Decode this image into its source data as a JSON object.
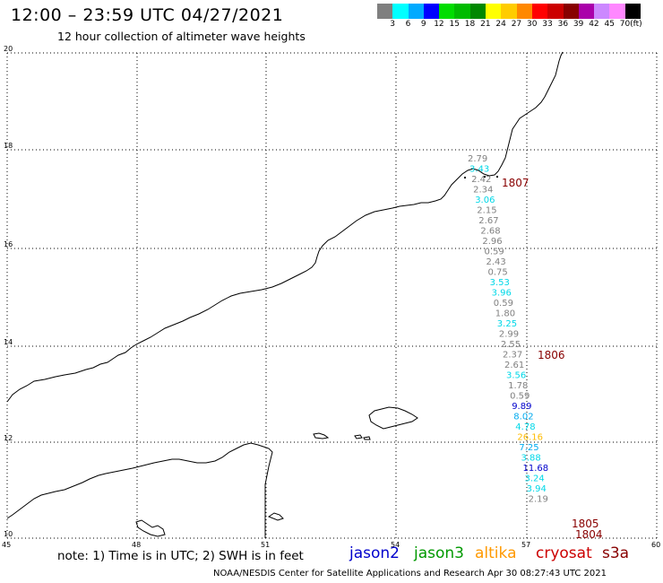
{
  "title": "12:00 – 23:59 UTC 04/27/2021",
  "subtitle": "12 hour collection of altimeter wave heights",
  "colorbar": {
    "colors": [
      "#7f7f7f",
      "#00ffff",
      "#00aaff",
      "#0000ff",
      "#00dd00",
      "#00bb00",
      "#008800",
      "#ffff00",
      "#ffcc00",
      "#ff8800",
      "#ff0000",
      "#cc0000",
      "#880000",
      "#aa00aa",
      "#cc88ff",
      "#ff88ff",
      "#000000"
    ],
    "labels": [
      "3",
      "6",
      "9",
      "12",
      "15",
      "18",
      "21",
      "24",
      "27",
      "30",
      "33",
      "36",
      "39",
      "42",
      "45",
      "70",
      "(ft)"
    ]
  },
  "grid": {
    "lat_labels": [
      "20",
      "18",
      "16",
      "14",
      "12",
      "10"
    ],
    "lon_labels": [
      "45",
      "48",
      "51",
      "54",
      "57",
      "60"
    ]
  },
  "note": "note: 1) Time is in UTC; 2) SWH is in feet",
  "legend": [
    {
      "name": "jason2",
      "color": "#0000cc"
    },
    {
      "name": "jason3",
      "color": "#009900"
    },
    {
      "name": "altika",
      "color": "#ff9900"
    },
    {
      "name": "cryosat",
      "color": "#cc0000"
    },
    {
      "name": "s3a",
      "color": "#880000"
    }
  ],
  "footer": "NOAA/NESDIS Center for Satellite Applications and Research    Apr 30 08:27:43 UTC 2021",
  "track_times": [
    {
      "label": "1807",
      "color": "#880000"
    },
    {
      "label": "1806",
      "color": "#880000"
    },
    {
      "label": "1805",
      "color": "#880000"
    },
    {
      "label": "1804",
      "color": "#880000"
    }
  ],
  "observations": [
    {
      "v": "2.79",
      "c": "#808080"
    },
    {
      "v": "3.43",
      "c": "#00d8e8"
    },
    {
      "v": "2.42",
      "c": "#808080"
    },
    {
      "v": "2.34",
      "c": "#808080"
    },
    {
      "v": "3.06",
      "c": "#00d8e8"
    },
    {
      "v": "2.15",
      "c": "#808080"
    },
    {
      "v": "2.67",
      "c": "#808080"
    },
    {
      "v": "2.68",
      "c": "#808080"
    },
    {
      "v": "2.96",
      "c": "#808080"
    },
    {
      "v": "0.59",
      "c": "#808080"
    },
    {
      "v": "2.43",
      "c": "#808080"
    },
    {
      "v": "0.75",
      "c": "#808080"
    },
    {
      "v": "3.53",
      "c": "#00d8e8"
    },
    {
      "v": "3.96",
      "c": "#00d8e8"
    },
    {
      "v": "0.59",
      "c": "#808080"
    },
    {
      "v": "1.80",
      "c": "#808080"
    },
    {
      "v": "3.25",
      "c": "#00d8e8"
    },
    {
      "v": "2.99",
      "c": "#808080"
    },
    {
      "v": "2.55",
      "c": "#808080"
    },
    {
      "v": "2.37",
      "c": "#808080"
    },
    {
      "v": "2.61",
      "c": "#808080"
    },
    {
      "v": "3.56",
      "c": "#00d8e8"
    },
    {
      "v": "1.78",
      "c": "#808080"
    },
    {
      "v": "0.59",
      "c": "#808080"
    },
    {
      "v": "9.89",
      "c": "#0000cc"
    },
    {
      "v": "8.02",
      "c": "#00aaee"
    },
    {
      "v": "4.78",
      "c": "#00d8e8"
    },
    {
      "v": "26.16",
      "c": "#ffbb00"
    },
    {
      "v": "7.25",
      "c": "#00aaee"
    },
    {
      "v": "3.88",
      "c": "#00d8e8"
    },
    {
      "v": "11.68",
      "c": "#0000cc"
    },
    {
      "v": "3.24",
      "c": "#00d8e8"
    },
    {
      "v": "3.94",
      "c": "#00d8e8"
    },
    {
      "v": "2.19",
      "c": "#808080"
    }
  ]
}
